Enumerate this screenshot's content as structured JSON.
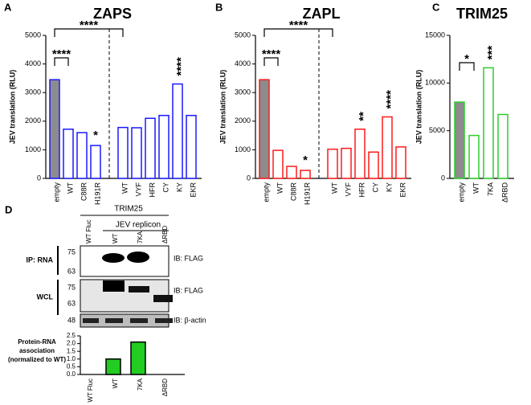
{
  "chart_data": [
    {
      "type": "bar",
      "panel": "A",
      "title": "ZAPS",
      "ylabel": "JEV translation (RLU)",
      "categories": [
        "empty",
        "WT",
        "C88R",
        "H191R",
        "WT",
        "VYF",
        "HFR",
        "CY",
        "KY",
        "EKR"
      ],
      "values": [
        3450,
        1720,
        1600,
        1150,
        1780,
        1770,
        2100,
        2200,
        3300,
        2200
      ],
      "color": "#1a1aff",
      "first_fill": "#8c8c8c",
      "ylim": [
        0,
        5000
      ],
      "yticks": [
        0,
        1000,
        2000,
        3000,
        4000,
        5000
      ],
      "annotations": [
        "****",
        "****",
        "*",
        "****"
      ]
    },
    {
      "type": "bar",
      "panel": "B",
      "title": "ZAPL",
      "ylabel": "JEV translation (RLU)",
      "categories": [
        "empty",
        "WT",
        "C88R",
        "H191R",
        "WT",
        "VYF",
        "HFR",
        "CY",
        "KY",
        "EKR"
      ],
      "values": [
        3450,
        980,
        420,
        280,
        1020,
        1050,
        1720,
        920,
        2150,
        1100
      ],
      "color": "#ff1a1a",
      "first_fill": "#8c8c8c",
      "ylim": [
        0,
        5000
      ],
      "yticks": [
        0,
        1000,
        2000,
        3000,
        4000,
        5000
      ],
      "annotations": [
        "****",
        "****",
        "*",
        "**",
        "****"
      ]
    },
    {
      "type": "bar",
      "panel": "C",
      "title": "TRIM25",
      "ylabel": "JEV translation (RLU)",
      "categories": [
        "empty",
        "WT",
        "7KA",
        "ΔRBD"
      ],
      "values": [
        8000,
        4500,
        11600,
        6700
      ],
      "color": "#2ecc2e",
      "first_fill": "#8c8c8c",
      "ylim": [
        0,
        15000
      ],
      "yticks": [
        0,
        5000,
        10000,
        15000
      ],
      "annotations": [
        "*",
        "***"
      ]
    },
    {
      "type": "bar",
      "ylabel": [
        "Protein-RNA",
        "association",
        "(normalized to WT)"
      ],
      "categories": [
        "WT Fluc",
        "WT",
        "7KA",
        "ΔRBD"
      ],
      "values": [
        0,
        1,
        2.1,
        0
      ],
      "color": "#000000",
      "first_fill": "#22cc22",
      "fill": "#22cc22",
      "ylim": [
        0,
        2.5
      ],
      "yticks": [
        {
          "value": 0,
          "label": "0.0"
        },
        0.5,
        {
          "value": 1,
          "label": "1.0"
        },
        1.5,
        {
          "value": 2,
          "label": "2.0"
        },
        2.5
      ]
    }
  ],
  "blot": {
    "panel": "D",
    "header": "TRIM25",
    "subheader": "JEV replicon",
    "lanes": [
      "WT Fluc",
      "WT",
      "7KA",
      "ΔRBD"
    ],
    "ip_label": "IP: RNA",
    "ip_markers": [
      "75",
      "63"
    ],
    "ip_ib": "IB: FLAG",
    "wcl_label": "WCL",
    "wcl_markers": [
      "75",
      "63"
    ],
    "wcl_ib": "IB: FLAG",
    "actin_marker": "48",
    "actin_ib": "IB: β-actin"
  }
}
